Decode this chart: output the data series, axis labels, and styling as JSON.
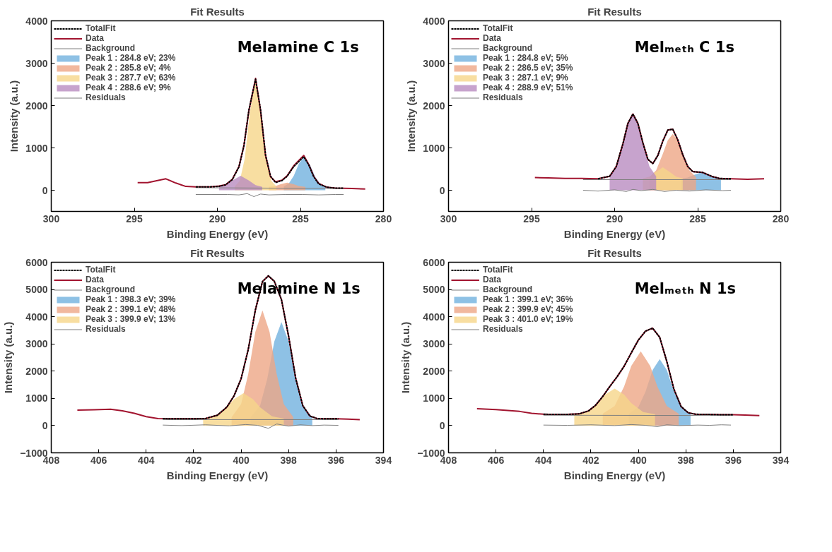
{
  "chart_data": [
    {
      "type": "line",
      "title": "Fit Results",
      "xlabel": "Binding Energy (eV)",
      "ylabel": "Intensity (a.u.)",
      "annotations": [
        "Melamine C 1s"
      ],
      "xlim": [
        300,
        280
      ],
      "xticks": [
        300,
        295,
        290,
        285,
        280
      ],
      "ylim": [
        -500,
        4000
      ],
      "yticks": [
        0,
        1000,
        2000,
        3000,
        4000
      ],
      "grid": false,
      "legend": "top left",
      "series": [
        {
          "name": "TotalFit",
          "line_style": "dotted",
          "color": "#000000",
          "x": [
            291.3,
            290.4,
            289.9,
            289.5,
            289.1,
            288.7,
            288.4,
            288.1,
            287.7,
            287.4,
            287.1,
            286.8,
            286.5,
            286.1,
            285.8,
            285.4,
            284.8,
            284.5,
            284.2,
            283.9,
            283.4,
            282.9,
            282.4
          ],
          "values": [
            80,
            80,
            90,
            130,
            250,
            550,
            1050,
            1900,
            2620,
            1900,
            830,
            330,
            180,
            230,
            330,
            560,
            790,
            600,
            320,
            150,
            70,
            50,
            50
          ]
        },
        {
          "name": "Data",
          "line_style": "solid",
          "color": "#a2142f",
          "x": [
            294.8,
            294.2,
            293.7,
            293.1,
            292.5,
            291.9,
            291.3,
            290.4,
            289.9,
            289.5,
            289.1,
            288.7,
            288.4,
            288.1,
            287.7,
            287.4,
            287.1,
            286.8,
            286.5,
            286.1,
            285.8,
            285.4,
            284.8,
            284.5,
            284.2,
            283.9,
            283.4,
            282.9,
            281.9,
            281.1
          ],
          "values": [
            180,
            180,
            220,
            270,
            170,
            90,
            80,
            80,
            100,
            130,
            260,
            560,
            1060,
            1880,
            2640,
            1880,
            820,
            320,
            200,
            240,
            340,
            580,
            820,
            610,
            330,
            160,
            70,
            50,
            40,
            30
          ]
        },
        {
          "name": "Background",
          "line_style": "solid",
          "color": "#7f7f7f",
          "x": [
            291.3,
            282.4
          ],
          "values": [
            60,
            40
          ]
        },
        {
          "name": "Peak 1 : 284.8 eV; 23%",
          "type": "area",
          "color": "#72b2de",
          "x": [
            286.0,
            285.7,
            285.4,
            285.1,
            284.8,
            284.4,
            284.1,
            283.8,
            283.5
          ],
          "values": [
            90,
            160,
            340,
            620,
            790,
            580,
            310,
            140,
            80
          ]
        },
        {
          "name": "Peak 2 : 285.8 eV; 4%",
          "type": "area",
          "color": "#eda686",
          "x": [
            286.9,
            286.5,
            286.2,
            285.8,
            285.4,
            285.1,
            284.7
          ],
          "values": [
            80,
            100,
            140,
            180,
            140,
            100,
            80
          ]
        },
        {
          "name": "Peak 3 : 287.7 eV; 63%",
          "type": "area",
          "color": "#f6d68a",
          "x": [
            288.95,
            288.65,
            288.35,
            288.05,
            287.7,
            287.35,
            287.05,
            286.75,
            286.45
          ],
          "values": [
            90,
            220,
            750,
            1820,
            2630,
            1820,
            750,
            220,
            90
          ]
        },
        {
          "name": "Peak 4 : 288.6 eV; 9%",
          "type": "area",
          "color": "#b98cc0",
          "x": [
            289.9,
            289.5,
            289.1,
            288.6,
            288.1,
            287.7,
            287.3
          ],
          "values": [
            80,
            120,
            230,
            340,
            230,
            120,
            80
          ]
        },
        {
          "name": "Residuals",
          "line_style": "solid",
          "color": "#7f7f7f",
          "x": [
            291.3,
            290.4,
            289.4,
            288.7,
            288.2,
            287.8,
            287.4,
            286.9,
            285.9,
            284.9,
            283.9,
            282.9,
            282.4
          ],
          "values": [
            -100,
            -100,
            -100,
            -110,
            -80,
            -150,
            -90,
            -110,
            -100,
            -100,
            -110,
            -100,
            -100
          ]
        }
      ]
    },
    {
      "type": "line",
      "title": "Fit Results",
      "xlabel": "Binding Energy (eV)",
      "ylabel": "Intensity (a.u.)",
      "annotations": [
        "Melₘₑₜₕ C 1s"
      ],
      "xlim": [
        300,
        280
      ],
      "xticks": [
        300,
        295,
        290,
        285,
        280
      ],
      "ylim": [
        -500,
        4000
      ],
      "yticks": [
        0,
        1000,
        2000,
        3000,
        4000
      ],
      "grid": false,
      "legend": "top left",
      "series": [
        {
          "name": "TotalFit",
          "line_style": "dotted",
          "color": "#000000",
          "x": [
            291.0,
            290.3,
            289.9,
            289.5,
            289.2,
            288.9,
            288.6,
            288.3,
            288.0,
            287.7,
            287.4,
            287.1,
            286.8,
            286.5,
            286.2,
            285.9,
            285.6,
            285.3,
            285.0,
            284.7,
            284.4,
            284.1,
            283.7,
            283.0
          ],
          "values": [
            270,
            330,
            560,
            1100,
            1580,
            1800,
            1580,
            1120,
            730,
            630,
            820,
            1160,
            1420,
            1440,
            1190,
            840,
            560,
            440,
            430,
            420,
            370,
            320,
            280,
            270
          ]
        },
        {
          "name": "Data",
          "line_style": "solid",
          "color": "#a2142f",
          "x": [
            294.8,
            294.0,
            293.0,
            292.0,
            291.0,
            290.3,
            289.9,
            289.5,
            289.2,
            288.9,
            288.6,
            288.3,
            288.0,
            287.7,
            287.4,
            287.1,
            286.8,
            286.5,
            286.2,
            285.9,
            285.6,
            285.3,
            285.0,
            284.7,
            284.4,
            284.1,
            283.7,
            283.0,
            282.0,
            281.0
          ],
          "values": [
            300,
            290,
            280,
            280,
            270,
            330,
            560,
            1100,
            1580,
            1800,
            1580,
            1120,
            730,
            630,
            820,
            1160,
            1420,
            1440,
            1190,
            840,
            560,
            440,
            430,
            420,
            370,
            320,
            280,
            270,
            260,
            270
          ]
        },
        {
          "name": "Background",
          "line_style": "solid",
          "color": "#7f7f7f",
          "x": [
            291.9,
            283.0
          ],
          "values": [
            250,
            250
          ]
        },
        {
          "name": "Peak 1 : 284.8 eV; 5%",
          "type": "area",
          "color": "#72b2de",
          "x": [
            286.0,
            285.6,
            285.3,
            284.8,
            284.3,
            284.0,
            283.6
          ],
          "values": [
            270,
            300,
            350,
            420,
            350,
            300,
            270
          ]
        },
        {
          "name": "Peak 2 : 286.5 eV; 35%",
          "type": "area",
          "color": "#eda686",
          "x": [
            287.9,
            287.5,
            287.1,
            286.8,
            286.5,
            286.2,
            285.9,
            285.5,
            285.1
          ],
          "values": [
            310,
            470,
            860,
            1180,
            1330,
            1180,
            860,
            470,
            310
          ]
        },
        {
          "name": "Peak 3 : 287.1 eV; 9%",
          "type": "area",
          "color": "#f6d68a",
          "x": [
            288.3,
            287.9,
            287.6,
            287.1,
            286.6,
            286.3,
            285.9
          ],
          "values": [
            280,
            320,
            410,
            540,
            410,
            320,
            280
          ]
        },
        {
          "name": "Peak 4 : 288.9 eV; 51%",
          "type": "area",
          "color": "#b98cc0",
          "x": [
            290.3,
            289.9,
            289.5,
            289.2,
            288.9,
            288.6,
            288.3,
            287.9,
            287.5
          ],
          "values": [
            330,
            560,
            1100,
            1570,
            1780,
            1570,
            1100,
            560,
            330
          ]
        },
        {
          "name": "Residuals",
          "line_style": "solid",
          "color": "#7f7f7f",
          "x": [
            291.9,
            291.0,
            290.0,
            289.3,
            288.9,
            288.4,
            287.7,
            287.0,
            286.3,
            285.5,
            284.5,
            283.5,
            283.0
          ],
          "values": [
            0,
            -20,
            10,
            -30,
            20,
            -10,
            20,
            -30,
            0,
            -20,
            10,
            -10,
            0
          ]
        }
      ]
    },
    {
      "type": "line",
      "title": "Fit Results",
      "xlabel": "Binding Energy (eV)",
      "ylabel": "Intensity (a.u.)",
      "annotations": [
        "Melamine N 1s"
      ],
      "xlim": [
        408,
        394
      ],
      "xticks": [
        408,
        406,
        404,
        402,
        400,
        398,
        396,
        394
      ],
      "ylim": [
        -1000,
        6000
      ],
      "yticks": [
        -1000,
        0,
        1000,
        2000,
        3000,
        4000,
        5000,
        6000
      ],
      "grid": false,
      "legend": "top left",
      "series": [
        {
          "name": "TotalFit",
          "line_style": "dotted",
          "color": "#000000",
          "x": [
            403.3,
            403.0,
            402.5,
            402.0,
            401.5,
            401.0,
            400.6,
            400.3,
            400.0,
            399.7,
            399.4,
            399.1,
            398.85,
            398.6,
            398.3,
            398.0,
            397.7,
            397.4,
            397.1,
            396.8,
            396.5,
            395.9
          ],
          "values": [
            260,
            250,
            250,
            250,
            260,
            380,
            680,
            1090,
            1720,
            2790,
            4240,
            5290,
            5500,
            5300,
            4630,
            3290,
            1740,
            730,
            350,
            260,
            250,
            250
          ]
        },
        {
          "name": "Data",
          "line_style": "solid",
          "color": "#a2142f",
          "x": [
            406.9,
            406.2,
            405.5,
            405.0,
            404.5,
            404.0,
            403.5,
            403.0,
            402.5,
            402.0,
            401.5,
            401.0,
            400.6,
            400.3,
            400.0,
            399.7,
            399.4,
            399.1,
            398.85,
            398.6,
            398.3,
            398.0,
            397.7,
            397.4,
            397.1,
            396.8,
            396.5,
            396.0,
            395.5,
            395.0
          ],
          "values": [
            570,
            580,
            600,
            540,
            450,
            330,
            260,
            250,
            250,
            250,
            260,
            380,
            680,
            1090,
            1720,
            2790,
            4240,
            5290,
            5500,
            5300,
            4630,
            3290,
            1740,
            730,
            350,
            260,
            250,
            250,
            240,
            220
          ]
        },
        {
          "name": "Background",
          "line_style": "solid",
          "color": "#7f7f7f",
          "x": [
            403.3,
            395.9
          ],
          "values": [
            220,
            220
          ]
        },
        {
          "name": "Peak 1 : 398.3 eV; 39%",
          "type": "area",
          "color": "#72b2de",
          "x": [
            399.6,
            399.2,
            398.9,
            398.6,
            398.3,
            398.0,
            397.7,
            397.4,
            397.0
          ],
          "values": [
            300,
            730,
            1710,
            3090,
            3800,
            3090,
            1710,
            730,
            300
          ]
        },
        {
          "name": "Peak 2 : 399.1 eV; 48%",
          "type": "area",
          "color": "#eda686",
          "x": [
            400.4,
            400.0,
            399.7,
            399.4,
            399.1,
            398.8,
            398.5,
            398.2,
            397.8
          ],
          "values": [
            310,
            790,
            1890,
            3440,
            4230,
            3440,
            1890,
            790,
            310
          ]
        },
        {
          "name": "Peak 3 : 399.9 eV; 13%",
          "type": "area",
          "color": "#f6d68a",
          "x": [
            401.6,
            401.1,
            400.6,
            400.3,
            399.9,
            399.5,
            399.2,
            398.7,
            398.2
          ],
          "values": [
            260,
            340,
            670,
            970,
            1190,
            970,
            670,
            340,
            260
          ]
        },
        {
          "name": "Residuals",
          "line_style": "solid",
          "color": "#7f7f7f",
          "x": [
            403.3,
            402.5,
            401.5,
            400.5,
            399.8,
            399.3,
            398.85,
            398.5,
            398.0,
            397.5,
            397.0,
            396.5,
            395.9
          ],
          "values": [
            20,
            0,
            30,
            -10,
            40,
            10,
            -100,
            60,
            -20,
            30,
            0,
            20,
            10
          ]
        }
      ]
    },
    {
      "type": "line",
      "title": "Fit Results",
      "xlabel": "Binding Energy (eV)",
      "ylabel": "Intensity (a.u.)",
      "annotations": [
        "Melₘₑₜₕ N 1s"
      ],
      "xlim": [
        408,
        394
      ],
      "xticks": [
        408,
        406,
        404,
        402,
        400,
        398,
        396,
        394
      ],
      "ylim": [
        -1000,
        6000
      ],
      "yticks": [
        -1000,
        0,
        1000,
        2000,
        3000,
        4000,
        5000,
        6000
      ],
      "grid": false,
      "legend": "top left",
      "series": [
        {
          "name": "TotalFit",
          "line_style": "dotted",
          "color": "#000000",
          "x": [
            404.0,
            403.5,
            403.0,
            402.5,
            402.1,
            401.8,
            401.5,
            401.2,
            400.9,
            400.6,
            400.3,
            400.0,
            399.7,
            399.4,
            399.1,
            398.8,
            398.5,
            398.2,
            397.9,
            397.6,
            397.3,
            397.0,
            396.5,
            396.0
          ],
          "values": [
            420,
            410,
            410,
            430,
            540,
            750,
            1070,
            1440,
            1790,
            2180,
            2670,
            3140,
            3470,
            3580,
            3240,
            2350,
            1330,
            700,
            470,
            420,
            410,
            410,
            400,
            400
          ]
        },
        {
          "name": "Data",
          "line_style": "solid",
          "color": "#a2142f",
          "x": [
            406.8,
            406.0,
            405.0,
            404.5,
            404.0,
            403.5,
            403.0,
            402.5,
            402.1,
            401.8,
            401.5,
            401.2,
            400.9,
            400.6,
            400.3,
            400.0,
            399.7,
            399.4,
            399.1,
            398.8,
            398.5,
            398.2,
            397.9,
            397.6,
            397.3,
            397.0,
            396.5,
            396.0,
            395.5,
            394.9
          ],
          "values": [
            620,
            590,
            520,
            450,
            420,
            410,
            410,
            430,
            540,
            750,
            1070,
            1440,
            1790,
            2180,
            2670,
            3140,
            3470,
            3580,
            3240,
            2350,
            1330,
            700,
            470,
            420,
            410,
            410,
            400,
            400,
            390,
            370
          ]
        },
        {
          "name": "Background",
          "line_style": "solid",
          "color": "#7f7f7f",
          "x": [
            404.0,
            396.0
          ],
          "values": [
            380,
            370
          ]
        },
        {
          "name": "Peak 1 : 399.1 eV; 36%",
          "type": "area",
          "color": "#72b2de",
          "x": [
            400.4,
            400.0,
            399.7,
            399.4,
            399.1,
            398.8,
            398.5,
            398.2,
            397.8
          ],
          "values": [
            440,
            680,
            1240,
            2040,
            2440,
            2040,
            1240,
            680,
            440
          ]
        },
        {
          "name": "Peak 2 : 399.9 eV; 45%",
          "type": "area",
          "color": "#eda686",
          "x": [
            401.5,
            401.0,
            400.6,
            400.3,
            399.9,
            399.5,
            399.2,
            398.8,
            398.3
          ],
          "values": [
            440,
            720,
            1440,
            2190,
            2730,
            2190,
            1440,
            720,
            440
          ]
        },
        {
          "name": "Peak 3 : 401.0 eV; 19%",
          "type": "area",
          "color": "#f6d68a",
          "x": [
            402.7,
            402.2,
            401.7,
            401.4,
            401.0,
            400.6,
            400.3,
            399.8,
            399.3
          ],
          "values": [
            420,
            500,
            830,
            1140,
            1360,
            1140,
            830,
            500,
            420
          ]
        },
        {
          "name": "Residuals",
          "line_style": "solid",
          "color": "#7f7f7f",
          "x": [
            404.0,
            403.0,
            402.0,
            401.0,
            400.3,
            399.7,
            399.2,
            398.8,
            398.3,
            397.5,
            397.0,
            396.5,
            396.1
          ],
          "values": [
            20,
            10,
            30,
            0,
            40,
            10,
            -40,
            30,
            0,
            20,
            10,
            30,
            20
          ]
        }
      ]
    }
  ]
}
